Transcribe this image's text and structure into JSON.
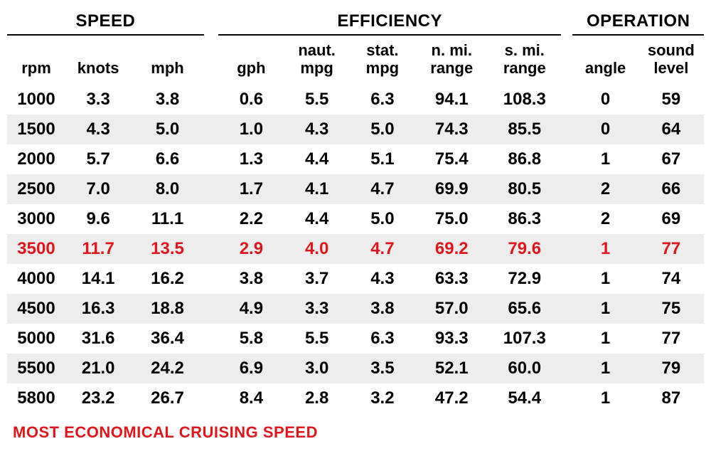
{
  "sections": {
    "speed": "SPEED",
    "efficiency": "EFFICIENCY",
    "operation": "OPERATION"
  },
  "headers": {
    "rpm": "rpm",
    "knots": "knots",
    "mph": "mph",
    "gph": "gph",
    "nmpg": "naut.\nmpg",
    "smpg": "stat.\nmpg",
    "nr": "n. mi.\nrange",
    "sr": "s. mi.\nrange",
    "angle": "angle",
    "sound": "sound\nlevel"
  },
  "colors": {
    "highlight": "#e0161d",
    "text": "#000000",
    "stripe": "#ededed",
    "background": "#ffffff"
  },
  "typography": {
    "section_fontsize": 24,
    "header_fontsize": 22,
    "cell_fontsize": 24,
    "footnote_fontsize": 22,
    "font_weight": 700,
    "font_family": "Arial"
  },
  "highlight_row_index": 5,
  "rows": [
    {
      "rpm": "1000",
      "knots": "3.3",
      "mph": "3.8",
      "gph": "0.6",
      "nmpg": "5.5",
      "smpg": "6.3",
      "nr": "94.1",
      "sr": "108.3",
      "angle": "0",
      "sound": "59"
    },
    {
      "rpm": "1500",
      "knots": "4.3",
      "mph": "5.0",
      "gph": "1.0",
      "nmpg": "4.3",
      "smpg": "5.0",
      "nr": "74.3",
      "sr": "85.5",
      "angle": "0",
      "sound": "64"
    },
    {
      "rpm": "2000",
      "knots": "5.7",
      "mph": "6.6",
      "gph": "1.3",
      "nmpg": "4.4",
      "smpg": "5.1",
      "nr": "75.4",
      "sr": "86.8",
      "angle": "1",
      "sound": "67"
    },
    {
      "rpm": "2500",
      "knots": "7.0",
      "mph": "8.0",
      "gph": "1.7",
      "nmpg": "4.1",
      "smpg": "4.7",
      "nr": "69.9",
      "sr": "80.5",
      "angle": "2",
      "sound": "66"
    },
    {
      "rpm": "3000",
      "knots": "9.6",
      "mph": "11.1",
      "gph": "2.2",
      "nmpg": "4.4",
      "smpg": "5.0",
      "nr": "75.0",
      "sr": "86.3",
      "angle": "2",
      "sound": "69"
    },
    {
      "rpm": "3500",
      "knots": "11.7",
      "mph": "13.5",
      "gph": "2.9",
      "nmpg": "4.0",
      "smpg": "4.7",
      "nr": "69.2",
      "sr": "79.6",
      "angle": "1",
      "sound": "77"
    },
    {
      "rpm": "4000",
      "knots": "14.1",
      "mph": "16.2",
      "gph": "3.8",
      "nmpg": "3.7",
      "smpg": "4.3",
      "nr": "63.3",
      "sr": "72.9",
      "angle": "1",
      "sound": "74"
    },
    {
      "rpm": "4500",
      "knots": "16.3",
      "mph": "18.8",
      "gph": "4.9",
      "nmpg": "3.3",
      "smpg": "3.8",
      "nr": "57.0",
      "sr": "65.6",
      "angle": "1",
      "sound": "75"
    },
    {
      "rpm": "5000",
      "knots": "31.6",
      "mph": "36.4",
      "gph": "5.8",
      "nmpg": "5.5",
      "smpg": "6.3",
      "nr": "93.3",
      "sr": "107.3",
      "angle": "1",
      "sound": "77"
    },
    {
      "rpm": "5500",
      "knots": "21.0",
      "mph": "24.2",
      "gph": "6.9",
      "nmpg": "3.0",
      "smpg": "3.5",
      "nr": "52.1",
      "sr": "60.0",
      "angle": "1",
      "sound": "79"
    },
    {
      "rpm": "5800",
      "knots": "23.2",
      "mph": "26.7",
      "gph": "8.4",
      "nmpg": "2.8",
      "smpg": "3.2",
      "nr": "47.2",
      "sr": "54.4",
      "angle": "1",
      "sound": "87"
    }
  ],
  "footnote": "MOST ECONOMICAL CRUISING SPEED"
}
